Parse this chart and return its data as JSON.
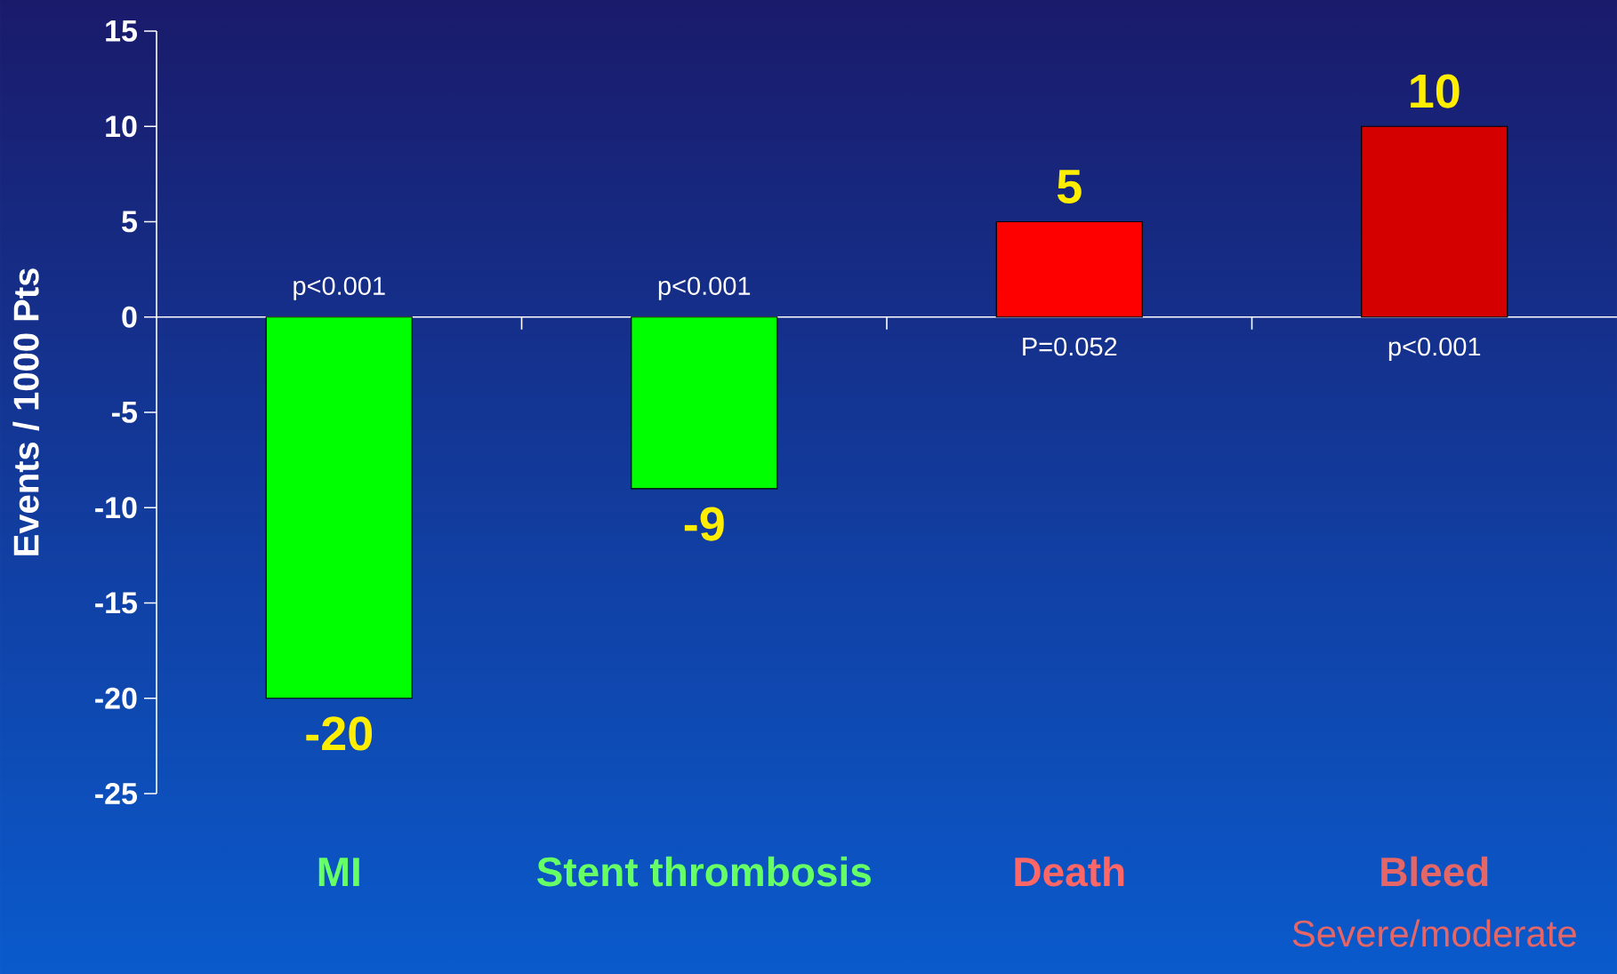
{
  "chart_data": {
    "type": "bar",
    "ylabel": "Events / 1000 Pts",
    "categories": [
      "MI",
      "Stent thrombosis",
      "Death",
      "Bleed"
    ],
    "values": [
      -20,
      -9,
      5,
      10
    ],
    "colors": [
      "#00ff00",
      "#00ff00",
      "#ff0000",
      "#d40000"
    ],
    "ylim": [
      -25,
      15
    ],
    "yticks": [
      -25,
      -20,
      -15,
      -10,
      -5,
      0,
      5,
      10,
      15
    ],
    "data_labels": true,
    "annotations": [
      "p<0.001",
      "p<0.001",
      "P=0.052",
      "p<0.001",
      "Severe/moderate"
    ]
  }
}
